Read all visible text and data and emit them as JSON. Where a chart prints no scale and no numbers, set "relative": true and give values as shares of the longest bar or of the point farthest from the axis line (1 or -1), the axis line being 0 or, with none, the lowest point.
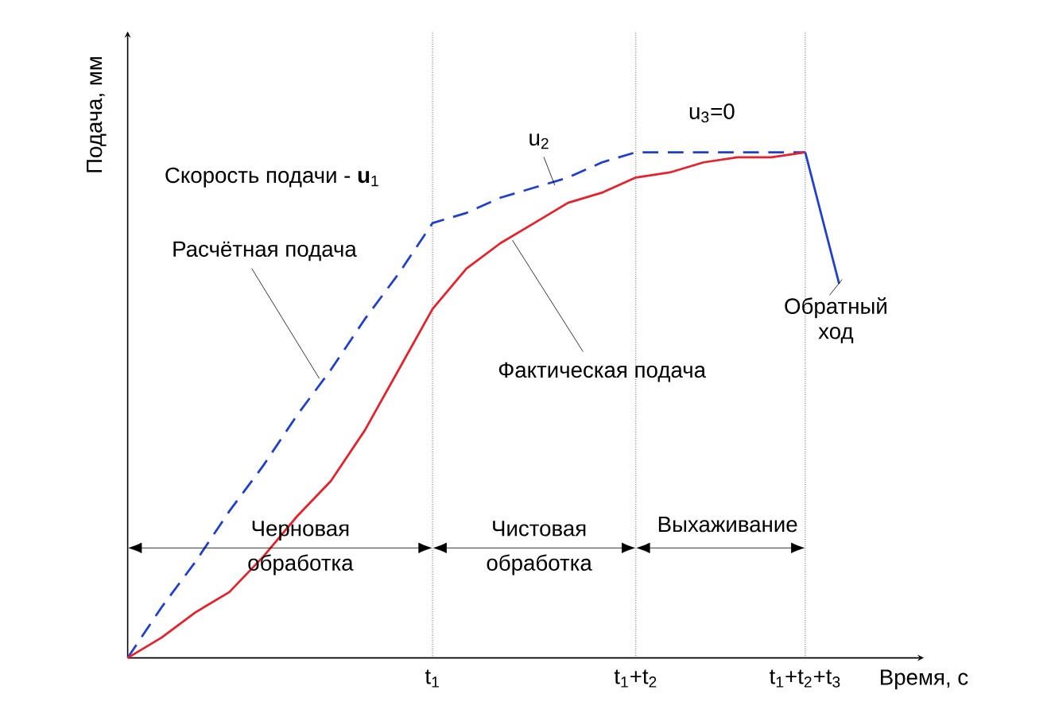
{
  "chart_data": {
    "type": "line",
    "relative": true,
    "xlabel": "Время, с",
    "ylabel": "Подача, мм",
    "categories": [
      null,
      null,
      null,
      null,
      null,
      null,
      null,
      null,
      null,
      "t$_{1}$",
      null,
      null,
      null,
      null,
      null,
      "t$_{1}$+t$_{2}$",
      null,
      null,
      null,
      null,
      "t$_{1}$+t$_{2}$+t$_{3}$",
      null,
      null,
      null
    ],
    "grid": "x",
    "series": [
      {
        "color": "#1f3fd0",
        "line_style": "dashed",
        "values": [
          0,
          0.1,
          0.19,
          0.29,
          0.38,
          0.48,
          0.57,
          0.67,
          0.76,
          0.86,
          0.88,
          0.91,
          0.93,
          0.95,
          0.98,
          1.0,
          1.0,
          1.0,
          1.0,
          1.0,
          1.0,
          null,
          null,
          null
        ]
      },
      {
        "color": "#e8202a",
        "line_style": "solid",
        "values": [
          0,
          0.04,
          0.09,
          0.13,
          0.2,
          0.28,
          0.35,
          0.45,
          0.57,
          0.69,
          0.77,
          0.82,
          0.86,
          0.9,
          0.92,
          0.95,
          0.96,
          0.98,
          0.99,
          0.99,
          1.0,
          null,
          null,
          null
        ]
      },
      {
        "color": "#1f3fd0",
        "line_style": "solid",
        "values": [
          null,
          null,
          null,
          null,
          null,
          null,
          null,
          null,
          null,
          null,
          null,
          null,
          null,
          null,
          null,
          null,
          null,
          null,
          null,
          null,
          1.0,
          0.74,
          null,
          null
        ]
      }
    ],
    "annotations": [
      "Скорость подачи - **u**$_{1}$",
      "u$_{2}$",
      "u$_{3}$=0",
      "Расчётная подача",
      "Фактическая подача",
      "Обратный ход",
      "Черновая обработка",
      "Чистовая обработка",
      "Выхаживание"
    ]
  }
}
